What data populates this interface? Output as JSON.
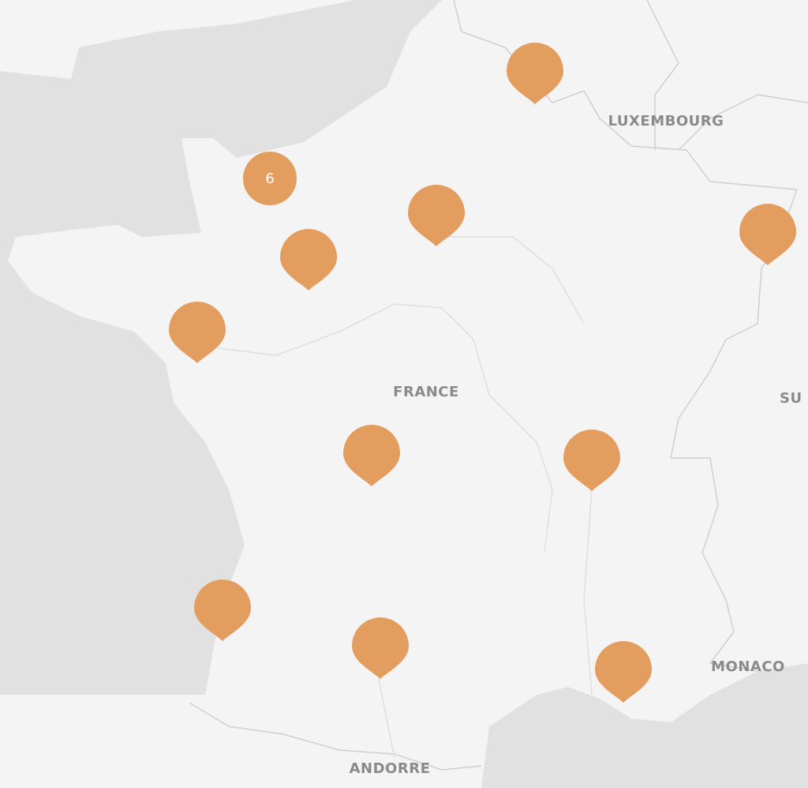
{
  "map": {
    "labels": [
      "LUXEMBOURG",
      "FRANCE",
      "SU",
      "MONACO",
      "ANDORRE"
    ],
    "cluster": {
      "count": "6"
    }
  }
}
